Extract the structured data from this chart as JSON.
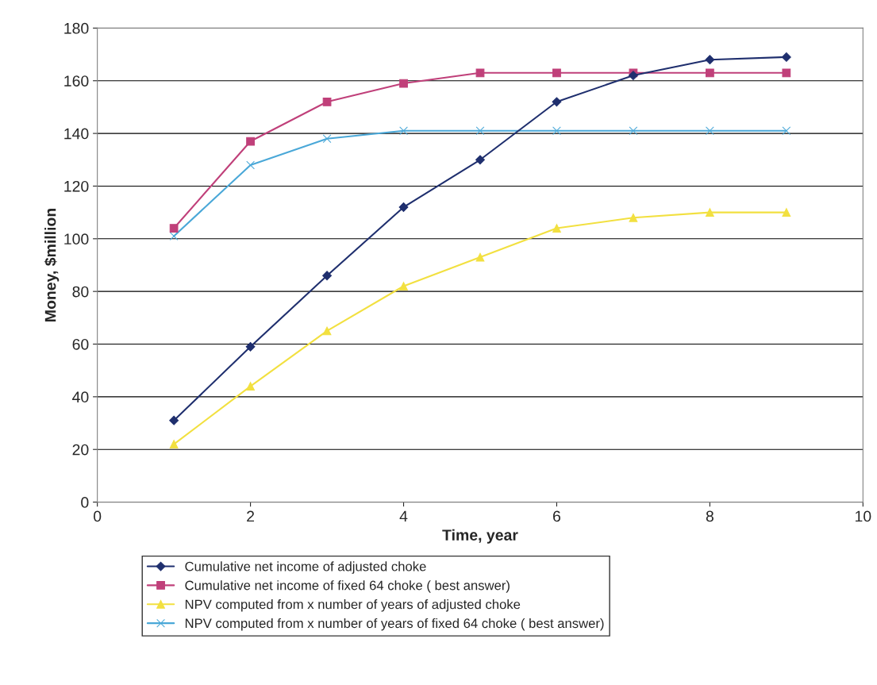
{
  "chart_data": {
    "type": "line",
    "xlabel": "Time, year",
    "ylabel": "Money, $million",
    "x": [
      1,
      2,
      3,
      4,
      5,
      6,
      7,
      8,
      9
    ],
    "series": [
      {
        "name": "Cumulative net income of adjusted choke",
        "color": "#1f2f6e",
        "marker": "diamond",
        "values": [
          31,
          59,
          86,
          112,
          130,
          152,
          162,
          168,
          169
        ]
      },
      {
        "name": "Cumulative net income of fixed 64 choke ( best answer)",
        "color": "#c0407a",
        "marker": "square",
        "values": [
          104,
          137,
          152,
          159,
          163,
          163,
          163,
          163,
          163
        ]
      },
      {
        "name": "NPV computed from x number of years of adjusted choke",
        "color": "#f2e040",
        "marker": "triangle",
        "values": [
          22,
          44,
          65,
          82,
          93,
          104,
          108,
          110,
          110
        ]
      },
      {
        "name": "NPV computed from x number of years of fixed 64 choke ( best answer)",
        "color": "#4aa8d8",
        "marker": "cross",
        "values": [
          101,
          128,
          138,
          141,
          141,
          141,
          141,
          141,
          141
        ]
      }
    ],
    "xlim": [
      0,
      10
    ],
    "xticks": [
      0,
      2,
      4,
      6,
      8,
      10
    ],
    "ylim": [
      0,
      180
    ],
    "yticks": [
      0,
      20,
      40,
      60,
      80,
      100,
      120,
      140,
      160,
      180
    ],
    "grid": "y",
    "legend": "bottom",
    "line_style": "solid"
  }
}
